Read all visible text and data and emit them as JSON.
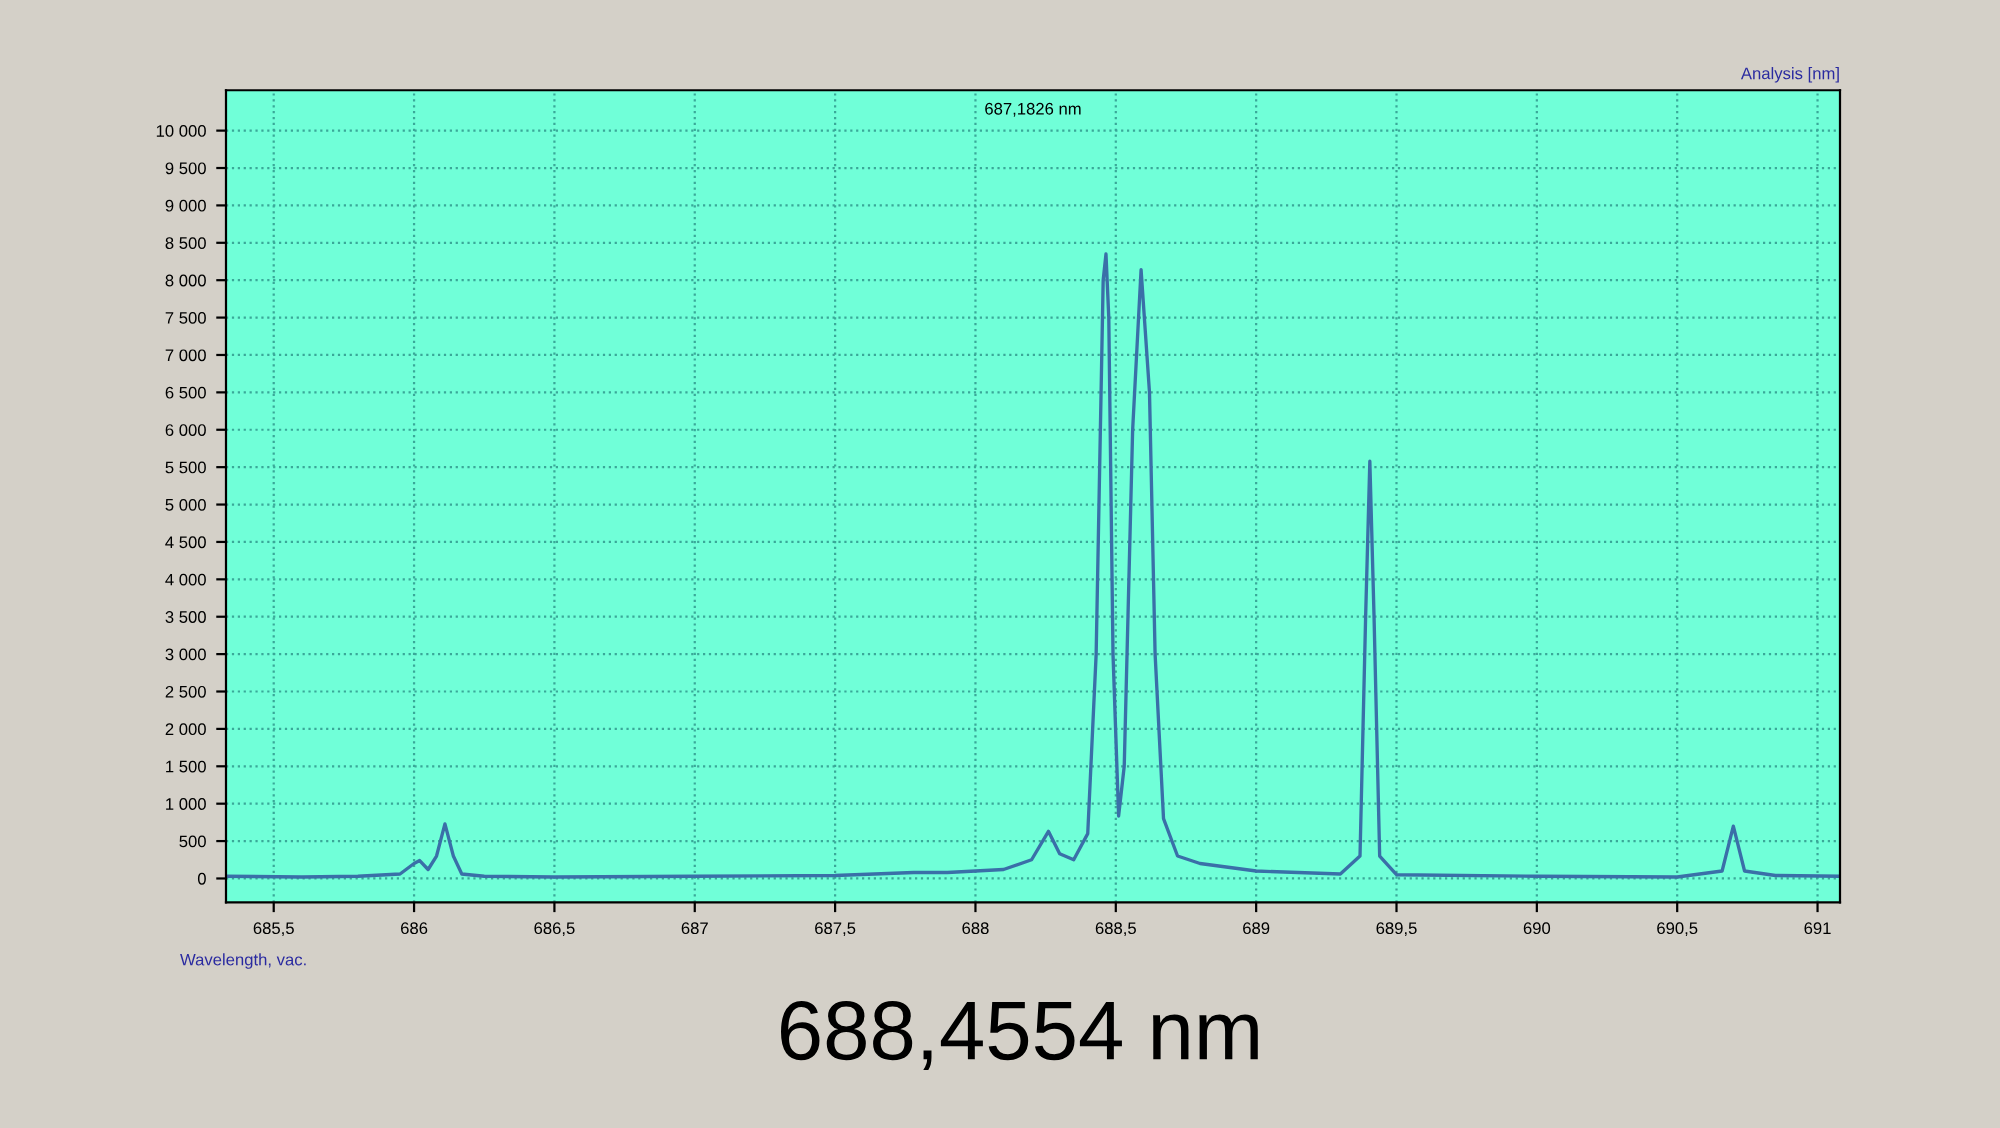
{
  "chart_data": {
    "type": "line",
    "title": "Analysis [nm]",
    "annotations": [
      "687,1826 nm",
      "Wavelength, vac.",
      "688,4554 nm"
    ],
    "series": [
      {
        "color": "#3a6fa8",
        "x": [
          685.33,
          685.6,
          685.8,
          685.95,
          686.0,
          686.02,
          686.05,
          686.08,
          686.11,
          686.14,
          686.17,
          686.25,
          686.5,
          687.0,
          687.5,
          687.78,
          687.9,
          688.1,
          688.2,
          688.26,
          688.3,
          688.35,
          688.4,
          688.43,
          688.455,
          688.465,
          688.475,
          688.49,
          688.51,
          688.53,
          688.56,
          688.59,
          688.62,
          688.64,
          688.67,
          688.72,
          688.8,
          689.0,
          689.3,
          689.37,
          689.39,
          689.405,
          689.42,
          689.44,
          689.5,
          690.0,
          690.5,
          690.66,
          690.7,
          690.74,
          690.85,
          691.08
        ],
        "values": [
          30,
          20,
          30,
          60,
          200,
          240,
          120,
          300,
          730,
          300,
          60,
          30,
          20,
          30,
          40,
          80,
          80,
          120,
          250,
          630,
          330,
          250,
          600,
          3000,
          8000,
          8350,
          7500,
          3000,
          835,
          1500,
          6000,
          8140,
          6500,
          3000,
          800,
          300,
          200,
          100,
          60,
          300,
          3500,
          5580,
          3500,
          300,
          50,
          30,
          20,
          100,
          700,
          100,
          40,
          30
        ]
      }
    ],
    "xlim": [
      685.33,
      691.08
    ],
    "ylim": [
      -320,
      10540
    ],
    "xticks": [
      {
        "value": 685.5,
        "label": "685,5"
      },
      686,
      {
        "value": 686.5,
        "label": "686,5"
      },
      687,
      {
        "value": 687.5,
        "label": "687,5"
      },
      688,
      {
        "value": 688.5,
        "label": "688,5"
      },
      689,
      {
        "value": 689.5,
        "label": "689,5"
      },
      690,
      {
        "value": 690.5,
        "label": "690,5"
      },
      691
    ],
    "yticks": [
      0,
      500,
      {
        "value": 1000,
        "label": "1 000"
      },
      {
        "value": 1500,
        "label": "1 500"
      },
      {
        "value": 2000,
        "label": "2 000"
      },
      {
        "value": 2500,
        "label": "2 500"
      },
      {
        "value": 3000,
        "label": "3 000"
      },
      {
        "value": 3500,
        "label": "3 500"
      },
      {
        "value": 4000,
        "label": "4 000"
      },
      {
        "value": 4500,
        "label": "4 500"
      },
      {
        "value": 5000,
        "label": "5 000"
      },
      {
        "value": 5500,
        "label": "5 500"
      },
      {
        "value": 6000,
        "label": "6 000"
      },
      {
        "value": 6500,
        "label": "6 500"
      },
      {
        "value": 7000,
        "label": "7 000"
      },
      {
        "value": 7500,
        "label": "7 500"
      },
      {
        "value": 8000,
        "label": "8 000"
      },
      {
        "value": 8500,
        "label": "8 500"
      },
      {
        "value": 9000,
        "label": "9 000"
      },
      {
        "value": 9500,
        "label": "9 500"
      },
      {
        "value": 10000,
        "label": "10 000"
      }
    ],
    "grid": true,
    "line_style": "solid",
    "marker": "none"
  }
}
